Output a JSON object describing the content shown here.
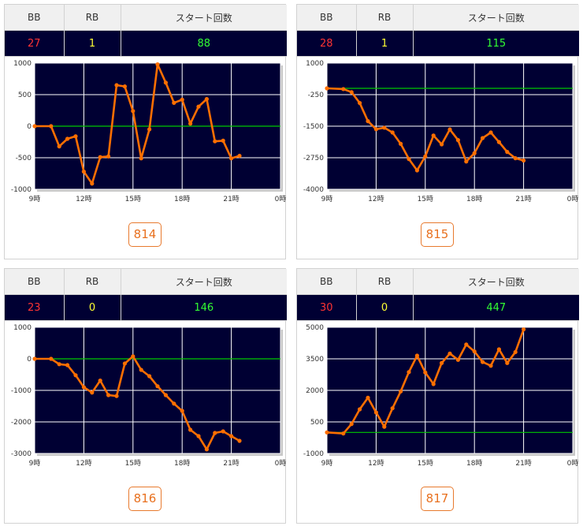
{
  "headers": {
    "bb": "BB",
    "rb": "RB",
    "start": "スタート回数"
  },
  "chart_data": [
    {
      "type": "line",
      "machine": "814",
      "stats": {
        "bb": "27",
        "rb": "1",
        "start": "88"
      },
      "ylim": [
        -1000,
        1000
      ],
      "yticks": [
        1000,
        500,
        0,
        -500,
        -1000
      ],
      "ytick_labels": [
        "1000",
        "500",
        "0",
        "-500",
        "-1000"
      ],
      "xlim": [
        9,
        24
      ],
      "xticks": [
        9,
        12,
        15,
        18,
        21,
        24
      ],
      "xtick_labels": [
        "9時",
        "12時",
        "15時",
        "18時",
        "21時",
        "0時"
      ],
      "baseline": 0,
      "series": [
        {
          "values": [
            [
              9.0,
              0
            ],
            [
              10.0,
              0
            ],
            [
              10.5,
              -320
            ],
            [
              11.0,
              -200
            ],
            [
              11.5,
              -160
            ],
            [
              12.0,
              -720
            ],
            [
              12.5,
              -910
            ],
            [
              13.0,
              -490
            ],
            [
              13.5,
              -480
            ],
            [
              14.0,
              650
            ],
            [
              14.5,
              630
            ],
            [
              15.0,
              240
            ],
            [
              15.5,
              -510
            ],
            [
              16.0,
              -50
            ],
            [
              16.5,
              980
            ],
            [
              17.0,
              690
            ],
            [
              17.5,
              370
            ],
            [
              18.0,
              420
            ],
            [
              18.5,
              40
            ],
            [
              19.0,
              310
            ],
            [
              19.5,
              430
            ],
            [
              20.0,
              -240
            ],
            [
              20.5,
              -230
            ],
            [
              21.0,
              -510
            ],
            [
              21.5,
              -470
            ]
          ]
        }
      ],
      "grid": true,
      "colors": {
        "background": "#000033",
        "line": "#ff6f00",
        "baseline": "#00c800",
        "grid": "#ffffff"
      }
    },
    {
      "type": "line",
      "machine": "815",
      "stats": {
        "bb": "28",
        "rb": "1",
        "start": "115"
      },
      "ylim": [
        -4000,
        1000
      ],
      "yticks": [
        1000,
        -250,
        -1500,
        -2750,
        -4000
      ],
      "ytick_labels": [
        "1000",
        "-250",
        "-1500",
        "-2750",
        "-4000"
      ],
      "xlim": [
        9,
        24
      ],
      "xticks": [
        9,
        12,
        15,
        18,
        21,
        24
      ],
      "xtick_labels": [
        "9時",
        "12時",
        "15時",
        "18時",
        "21時",
        "0時"
      ],
      "baseline": 0,
      "series": [
        {
          "values": [
            [
              9.0,
              0
            ],
            [
              10.0,
              -30
            ],
            [
              10.5,
              -150
            ],
            [
              11.0,
              -580
            ],
            [
              11.5,
              -1300
            ],
            [
              12.0,
              -1620
            ],
            [
              12.5,
              -1560
            ],
            [
              13.0,
              -1750
            ],
            [
              13.5,
              -2200
            ],
            [
              14.0,
              -2800
            ],
            [
              14.5,
              -3250
            ],
            [
              15.0,
              -2700
            ],
            [
              15.5,
              -1870
            ],
            [
              16.0,
              -2220
            ],
            [
              16.5,
              -1630
            ],
            [
              17.0,
              -2050
            ],
            [
              17.5,
              -2900
            ],
            [
              18.0,
              -2570
            ],
            [
              18.5,
              -1970
            ],
            [
              19.0,
              -1750
            ],
            [
              19.5,
              -2130
            ],
            [
              20.0,
              -2520
            ],
            [
              20.5,
              -2770
            ],
            [
              21.0,
              -2860
            ]
          ]
        }
      ],
      "grid": true,
      "colors": {
        "background": "#000033",
        "line": "#ff6f00",
        "baseline": "#00c800",
        "grid": "#ffffff"
      }
    },
    {
      "type": "line",
      "machine": "816",
      "stats": {
        "bb": "23",
        "rb": "0",
        "start": "146"
      },
      "ylim": [
        -3000,
        1000
      ],
      "yticks": [
        1000,
        0,
        -1000,
        -2000,
        -3000
      ],
      "ytick_labels": [
        "1000",
        "0",
        "-1000",
        "-2000",
        "-3000"
      ],
      "xlim": [
        9,
        24
      ],
      "xticks": [
        9,
        12,
        15,
        18,
        21,
        24
      ],
      "xtick_labels": [
        "9時",
        "12時",
        "15時",
        "18時",
        "21時",
        "0時"
      ],
      "baseline": 0,
      "series": [
        {
          "values": [
            [
              9.0,
              0
            ],
            [
              10.0,
              0
            ],
            [
              10.5,
              -170
            ],
            [
              11.0,
              -200
            ],
            [
              11.5,
              -520
            ],
            [
              12.0,
              -900
            ],
            [
              12.5,
              -1070
            ],
            [
              13.0,
              -690
            ],
            [
              13.5,
              -1150
            ],
            [
              14.0,
              -1180
            ],
            [
              14.5,
              -150
            ],
            [
              15.0,
              80
            ],
            [
              15.5,
              -350
            ],
            [
              16.0,
              -550
            ],
            [
              16.5,
              -870
            ],
            [
              17.0,
              -1150
            ],
            [
              17.5,
              -1420
            ],
            [
              18.0,
              -1650
            ],
            [
              18.5,
              -2250
            ],
            [
              19.0,
              -2450
            ],
            [
              19.5,
              -2870
            ],
            [
              20.0,
              -2350
            ],
            [
              20.5,
              -2300
            ],
            [
              21.0,
              -2450
            ],
            [
              21.5,
              -2600
            ]
          ]
        }
      ],
      "grid": true,
      "colors": {
        "background": "#000033",
        "line": "#ff6f00",
        "baseline": "#00c800",
        "grid": "#ffffff"
      }
    },
    {
      "type": "line",
      "machine": "817",
      "stats": {
        "bb": "30",
        "rb": "0",
        "start": "447"
      },
      "ylim": [
        -1000,
        5000
      ],
      "yticks": [
        5000,
        3500,
        2000,
        500,
        -1000
      ],
      "ytick_labels": [
        "5000",
        "3500",
        "2000",
        "500",
        "-1000"
      ],
      "xlim": [
        9,
        24
      ],
      "xticks": [
        9,
        12,
        15,
        18,
        21,
        24
      ],
      "xtick_labels": [
        "9時",
        "12時",
        "15時",
        "18時",
        "21時",
        "0時"
      ],
      "baseline": 0,
      "series": [
        {
          "values": [
            [
              9.0,
              0
            ],
            [
              10.0,
              -50
            ],
            [
              10.5,
              400
            ],
            [
              11.0,
              1100
            ],
            [
              11.5,
              1650
            ],
            [
              12.0,
              950
            ],
            [
              12.5,
              270
            ],
            [
              13.0,
              1150
            ],
            [
              13.5,
              1950
            ],
            [
              14.0,
              2870
            ],
            [
              14.5,
              3650
            ],
            [
              15.0,
              2850
            ],
            [
              15.5,
              2300
            ],
            [
              16.0,
              3300
            ],
            [
              16.5,
              3750
            ],
            [
              17.0,
              3450
            ],
            [
              17.5,
              4180
            ],
            [
              18.0,
              3850
            ],
            [
              18.5,
              3350
            ],
            [
              19.0,
              3170
            ],
            [
              19.5,
              3950
            ],
            [
              20.0,
              3300
            ],
            [
              20.5,
              3820
            ],
            [
              21.0,
              4900
            ]
          ]
        }
      ],
      "grid": true,
      "colors": {
        "background": "#000033",
        "line": "#ff6f00",
        "baseline": "#00c800",
        "grid": "#ffffff"
      }
    }
  ]
}
